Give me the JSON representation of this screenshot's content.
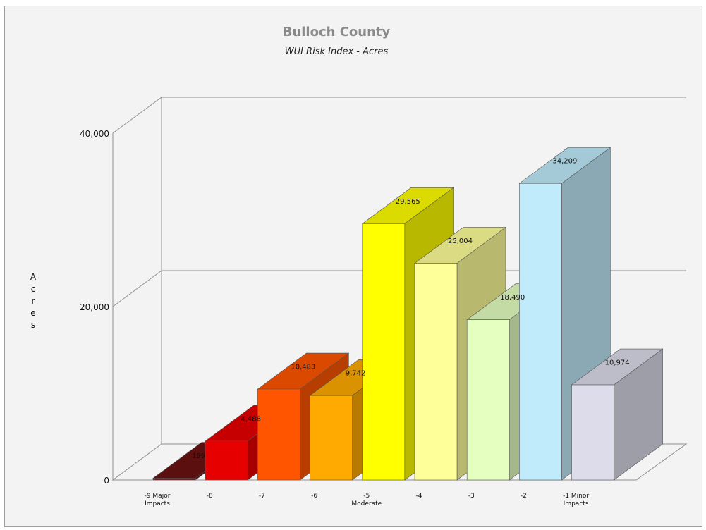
{
  "chart_data": {
    "type": "bar",
    "title": "Bulloch County",
    "subtitle": "WUI Risk Index - Acres",
    "ylabel": "Acres",
    "xlabel": "",
    "ylim": [
      0,
      40000
    ],
    "y_ticks": [
      "0",
      "20,000",
      "40,000"
    ],
    "grid": true,
    "legend": "none",
    "categories": [
      [
        "-9 Major",
        "Impacts"
      ],
      [
        "-8"
      ],
      [
        "-7"
      ],
      [
        "-6"
      ],
      [
        "-5",
        "Moderate"
      ],
      [
        "-4"
      ],
      [
        "-3"
      ],
      [
        "-2"
      ],
      [
        "-1 Minor",
        "Impacts"
      ]
    ],
    "values": [
      199,
      4488,
      10483,
      9742,
      29565,
      25004,
      18490,
      34209,
      10974
    ],
    "value_labels": [
      "199",
      "4,488",
      "10,483",
      "9,742",
      "29,565",
      "25,004",
      "18,490",
      "34,209",
      "10,974"
    ],
    "colors": [
      "#6b1212",
      "#e60000",
      "#ff5500",
      "#ffaa00",
      "#ffff00",
      "#ffff99",
      "#e5ffc0",
      "#bfebfa",
      "#dcdcea"
    ]
  }
}
